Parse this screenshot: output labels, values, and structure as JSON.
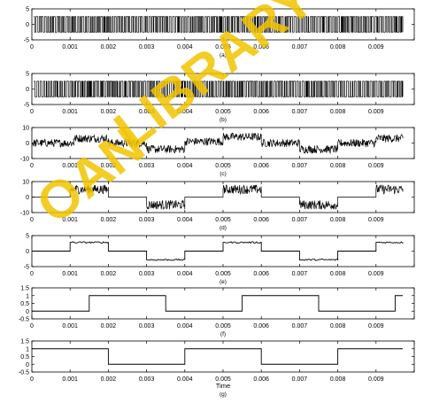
{
  "chart_data": [
    {
      "type": "line",
      "caption": "(a)",
      "xlim": [
        0,
        0.01
      ],
      "ylim": [
        -5,
        5
      ],
      "xticks": [
        "0",
        "0.001",
        "0.002",
        "0.003",
        "0.004",
        "0.005",
        "0.006",
        "0.007",
        "0.008",
        "0.009",
        "0.01"
      ],
      "yticks": [
        "-5",
        "0",
        "5"
      ],
      "series": [
        {
          "shape": "dense pulse-width modulated switching between about -2.5 and +2.5",
          "color": "#000000"
        }
      ]
    },
    {
      "type": "line",
      "caption": "(b)",
      "xlim": [
        0,
        0.01
      ],
      "ylim": [
        -5,
        5
      ],
      "xticks": [
        "0",
        "0.001",
        "0.002",
        "0.003",
        "0.004",
        "0.005",
        "0.006",
        "0.007",
        "0.008",
        "0.009",
        "0.01"
      ],
      "yticks": [
        "-5",
        "0",
        "5"
      ],
      "series": [
        {
          "shape": "dense pulse-width modulated switching between about -2.5 and +2.5",
          "color": "#000000"
        }
      ]
    },
    {
      "type": "line",
      "caption": "(c)",
      "xlim": [
        0,
        0.01
      ],
      "ylim": [
        -10,
        10
      ],
      "xticks": [
        "0",
        "0.001",
        "0.002",
        "0.003",
        "0.004",
        "0.005",
        "0.006",
        "0.007",
        "0.008",
        "0.009",
        "0.01"
      ],
      "yticks": [
        "-10",
        "0",
        "10"
      ],
      "series": [
        {
          "shape": "noisy band alternating between about +3 and -4 levels",
          "color": "#000000",
          "segments": [
            {
              "x": [
                0.0,
                0.0011
              ],
              "level": 0
            },
            {
              "x": [
                0.0011,
                0.002
              ],
              "level": 3
            },
            {
              "x": [
                0.002,
                0.003
              ],
              "level": 0
            },
            {
              "x": [
                0.003,
                0.004
              ],
              "level": -4
            },
            {
              "x": [
                0.004,
                0.005
              ],
              "level": 1
            },
            {
              "x": [
                0.005,
                0.006
              ],
              "level": 4
            },
            {
              "x": [
                0.006,
                0.007
              ],
              "level": 0
            },
            {
              "x": [
                0.007,
                0.008
              ],
              "level": -4
            },
            {
              "x": [
                0.008,
                0.009
              ],
              "level": 0
            },
            {
              "x": [
                0.009,
                0.0097
              ],
              "level": 3
            }
          ]
        }
      ]
    },
    {
      "type": "line",
      "caption": "(d)",
      "xlim": [
        0,
        0.01
      ],
      "ylim": [
        -10,
        10
      ],
      "xticks": [
        "0",
        "0.001",
        "0.002",
        "0.003",
        "0.004",
        "0.005",
        "0.006",
        "0.007",
        "0.008",
        "0.009",
        "0.01"
      ],
      "yticks": [
        "-10",
        "0",
        "10"
      ],
      "series": [
        {
          "shape": "noisy bursts at +5 and -5, zero elsewhere",
          "color": "#000000",
          "segments": [
            {
              "x": [
                0.0,
                0.001
              ],
              "level": 0
            },
            {
              "x": [
                0.001,
                0.002
              ],
              "level": 5,
              "noisy": true
            },
            {
              "x": [
                0.002,
                0.003
              ],
              "level": 0
            },
            {
              "x": [
                0.003,
                0.004
              ],
              "level": -5,
              "noisy": true
            },
            {
              "x": [
                0.004,
                0.005
              ],
              "level": 0
            },
            {
              "x": [
                0.005,
                0.006
              ],
              "level": 5,
              "noisy": true
            },
            {
              "x": [
                0.006,
                0.007
              ],
              "level": 0
            },
            {
              "x": [
                0.007,
                0.008
              ],
              "level": -5,
              "noisy": true
            },
            {
              "x": [
                0.008,
                0.009
              ],
              "level": 0
            },
            {
              "x": [
                0.009,
                0.0097
              ],
              "level": 5,
              "noisy": true
            }
          ]
        }
      ]
    },
    {
      "type": "line",
      "caption": "(e)",
      "xlim": [
        0,
        0.01
      ],
      "ylim": [
        -5,
        5
      ],
      "xticks": [
        "0",
        "0.001",
        "0.002",
        "0.003",
        "0.004",
        "0.005",
        "0.006",
        "0.007",
        "0.008",
        "0.009",
        "0.01"
      ],
      "yticks": [
        "-5",
        "0",
        "5"
      ],
      "series": [
        {
          "shape": "three-level waveform with small ripple",
          "color": "#000000",
          "segments": [
            {
              "x": [
                0.0,
                0.001
              ],
              "level": 0
            },
            {
              "x": [
                0.001,
                0.002
              ],
              "level": 2.8,
              "noisy": true
            },
            {
              "x": [
                0.002,
                0.003
              ],
              "level": 0
            },
            {
              "x": [
                0.003,
                0.004
              ],
              "level": -2.8,
              "noisy": true
            },
            {
              "x": [
                0.004,
                0.005
              ],
              "level": 0
            },
            {
              "x": [
                0.005,
                0.006
              ],
              "level": 2.8,
              "noisy": true
            },
            {
              "x": [
                0.006,
                0.007
              ],
              "level": 0
            },
            {
              "x": [
                0.007,
                0.008
              ],
              "level": -2.8,
              "noisy": true
            },
            {
              "x": [
                0.008,
                0.009
              ],
              "level": 0
            },
            {
              "x": [
                0.009,
                0.0097
              ],
              "level": 2.8,
              "noisy": true
            }
          ]
        }
      ]
    },
    {
      "type": "line",
      "caption": "(f)",
      "xlim": [
        0,
        0.01
      ],
      "ylim": [
        -0.5,
        1.5
      ],
      "xticks": [
        "0",
        "0.001",
        "0.002",
        "0.003",
        "0.004",
        "0.005",
        "0.006",
        "0.007",
        "0.008",
        "0.009",
        "0.01"
      ],
      "yticks": [
        "-0.5",
        "0",
        "0.5",
        "1",
        "1.5"
      ],
      "series": [
        {
          "shape": "binary square wave",
          "color": "#000000",
          "segments": [
            {
              "x": [
                0.0,
                0.0015
              ],
              "level": 0
            },
            {
              "x": [
                0.0015,
                0.0035
              ],
              "level": 1
            },
            {
              "x": [
                0.0035,
                0.0055
              ],
              "level": 0
            },
            {
              "x": [
                0.0055,
                0.0075
              ],
              "level": 1
            },
            {
              "x": [
                0.0075,
                0.0095
              ],
              "level": 0
            },
            {
              "x": [
                0.0095,
                0.0097
              ],
              "level": 1
            }
          ]
        }
      ]
    },
    {
      "type": "line",
      "caption": "(g)",
      "xlabel": "Time",
      "xlim": [
        0,
        0.01
      ],
      "ylim": [
        -0.5,
        1.5
      ],
      "xticks": [
        "0",
        "0.001",
        "0.002",
        "0.003",
        "0.004",
        "0.005",
        "0.006",
        "0.007",
        "0.008",
        "0.009",
        "0.01"
      ],
      "yticks": [
        "-0.5",
        "0",
        "0.5",
        "1",
        "1.5"
      ],
      "series": [
        {
          "shape": "binary square wave",
          "color": "#000000",
          "segments": [
            {
              "x": [
                0.0,
                0.002
              ],
              "level": 1
            },
            {
              "x": [
                0.002,
                0.004
              ],
              "level": 0
            },
            {
              "x": [
                0.004,
                0.006
              ],
              "level": 1
            },
            {
              "x": [
                0.006,
                0.008
              ],
              "level": 0
            },
            {
              "x": [
                0.008,
                0.0097
              ],
              "level": 1
            }
          ]
        }
      ]
    }
  ],
  "watermark": {
    "text": "LIBRARY",
    "prefix": "OAN",
    "color": "#f2c400"
  }
}
